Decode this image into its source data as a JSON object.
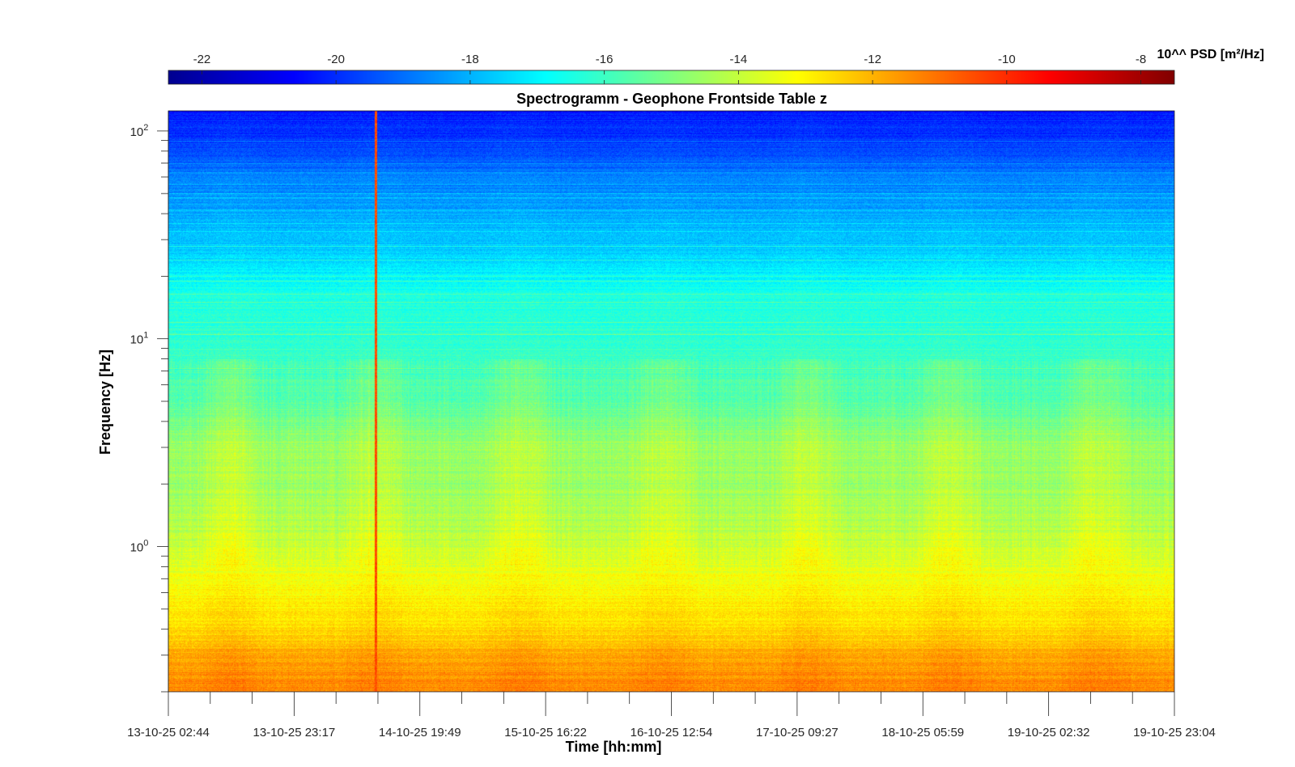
{
  "chart_data": {
    "type": "heatmap",
    "title": "Spectrogramm - Geophone Frontside Table z",
    "xlabel": "Time [hh:mm]",
    "ylabel": "Frequency [Hz]",
    "y_scale": "log",
    "ylim": [
      0.2,
      125
    ],
    "x_ticks": [
      "13-10-25 02:44",
      "13-10-25 23:17",
      "14-10-25 19:49",
      "15-10-25 16:22",
      "16-10-25 12:54",
      "17-10-25 09:27",
      "18-10-25 05:59",
      "19-10-25 02:32",
      "19-10-25 23:04"
    ],
    "y_ticks": [
      {
        "base": "10",
        "exp": "0",
        "value": 1
      },
      {
        "base": "10",
        "exp": "1",
        "value": 10
      },
      {
        "base": "10",
        "exp": "2",
        "value": 100
      }
    ],
    "colorbar": {
      "label": "10^^ PSD [m²/Hz]",
      "range": [
        -22.5,
        -7.5
      ],
      "ticks": [
        -22,
        -20,
        -18,
        -16,
        -14,
        -12,
        -10,
        -8
      ],
      "tick_labels": [
        "-22",
        "-20",
        "-18",
        "-16",
        "-14",
        "-12",
        "-10",
        "-8"
      ],
      "colormap": "jet"
    },
    "grid": false,
    "features": [
      {
        "type": "transient",
        "time_fraction": 0.206,
        "description_value": -9.5
      },
      {
        "type": "band",
        "freq_range": [
          0.2,
          0.35
        ],
        "level": -11.5
      },
      {
        "type": "band",
        "freq_range": [
          0.35,
          1.0
        ],
        "level": -13.0
      },
      {
        "type": "band",
        "freq_range": [
          1.0,
          10
        ],
        "level": -15.0
      },
      {
        "type": "band",
        "freq_range": [
          10,
          40
        ],
        "level": -17.0
      },
      {
        "type": "band",
        "freq_range": [
          40,
          125
        ],
        "level": -19.5
      }
    ]
  }
}
